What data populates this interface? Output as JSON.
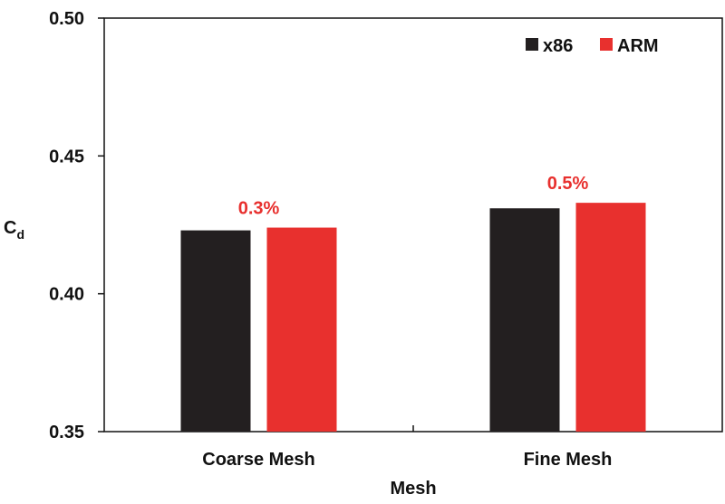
{
  "chart_data": {
    "type": "bar",
    "categories": [
      "Coarse Mesh",
      "Fine Mesh"
    ],
    "series": [
      {
        "name": "x86",
        "values": [
          0.423,
          0.431
        ],
        "color": "#231f20"
      },
      {
        "name": "ARM",
        "values": [
          0.424,
          0.433
        ],
        "color": "#e8302e"
      }
    ],
    "xlabel": "Mesh",
    "ylabel": {
      "main": "C",
      "sub": "d"
    },
    "ylim": [
      0.35,
      0.5
    ],
    "yticks": [
      "0.35",
      "0.40",
      "0.45",
      "0.50"
    ],
    "annotations": [
      {
        "category": "Coarse Mesh",
        "text": "0.3%",
        "color": "#e8302e"
      },
      {
        "category": "Fine Mesh",
        "text": "0.5%",
        "color": "#e8302e"
      }
    ],
    "legend_position": "top-right",
    "grid": false
  }
}
